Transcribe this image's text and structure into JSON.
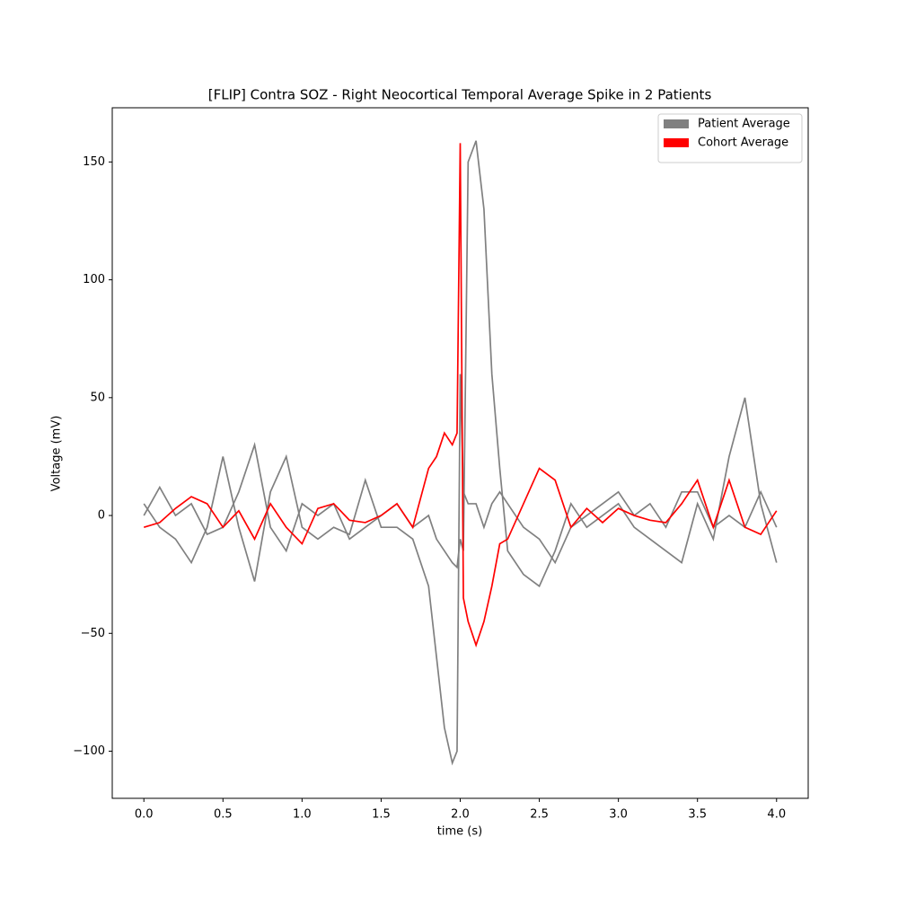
{
  "chart_data": {
    "type": "line",
    "title": "[FLIP] Contra SOZ - Right Neocortical Temporal Average Spike in 2 Patients",
    "xlabel": "time (s)",
    "ylabel": "Voltage (mV)",
    "x": [
      0,
      0.1,
      0.2,
      0.3,
      0.4,
      0.5,
      0.6,
      0.7,
      0.8,
      0.9,
      1.0,
      1.1,
      1.2,
      1.3,
      1.4,
      1.5,
      1.6,
      1.7,
      1.8,
      1.85,
      1.9,
      1.95,
      1.98,
      2.0,
      2.02,
      2.05,
      2.1,
      2.15,
      2.2,
      2.25,
      2.3,
      2.4,
      2.5,
      2.6,
      2.7,
      2.8,
      2.9,
      3.0,
      3.1,
      3.2,
      3.3,
      3.4,
      3.5,
      3.6,
      3.7,
      3.8,
      3.9,
      4.0
    ],
    "series": [
      {
        "name": "Patient Average",
        "color": "#808080",
        "values": [
          5,
          -5,
          -10,
          -20,
          -5,
          25,
          -5,
          -28,
          10,
          25,
          -5,
          -10,
          -5,
          -8,
          15,
          -5,
          -5,
          -10,
          -30,
          -60,
          -90,
          -105,
          -100,
          60,
          10,
          5,
          5,
          -5,
          5,
          10,
          5,
          -5,
          -10,
          -20,
          -5,
          0,
          5,
          10,
          0,
          5,
          -5,
          10,
          10,
          -5,
          0,
          -5,
          10,
          -5
        ]
      },
      {
        "color": "#808080",
        "values": [
          0,
          12,
          0,
          5,
          -8,
          -5,
          10,
          30,
          -5,
          -15,
          5,
          0,
          5,
          -10,
          -5,
          0,
          5,
          -5,
          0,
          -10,
          -15,
          -20,
          -22,
          -10,
          -15,
          150,
          159,
          130,
          60,
          20,
          -15,
          -25,
          -30,
          -15,
          5,
          -5,
          0,
          5,
          -5,
          -10,
          -15,
          -20,
          5,
          -10,
          25,
          50,
          5,
          -20
        ]
      },
      {
        "name": "Cohort Average",
        "color": "#ff0000",
        "values": [
          -5,
          -3,
          3,
          8,
          5,
          -5,
          2,
          -10,
          5,
          -5,
          -12,
          3,
          5,
          -2,
          -3,
          0,
          5,
          -5,
          20,
          25,
          35,
          30,
          35,
          158,
          -35,
          -45,
          -55,
          -45,
          -30,
          -12,
          -10,
          5,
          20,
          15,
          -5,
          3,
          -3,
          3,
          0,
          -2,
          -3,
          5,
          15,
          -5,
          15,
          -5,
          -8,
          2
        ]
      }
    ],
    "xlim": [
      -0.2,
      4.2
    ],
    "ylim": [
      -120,
      173
    ],
    "xticks": [
      {
        "value": 0,
        "label": "0.0"
      },
      {
        "value": 0.5,
        "label": "0.5"
      },
      {
        "value": 1,
        "label": "1.0"
      },
      {
        "value": 1.5,
        "label": "1.5"
      },
      {
        "value": 2,
        "label": "2.0"
      },
      {
        "value": 2.5,
        "label": "2.5"
      },
      {
        "value": 3,
        "label": "3.0"
      },
      {
        "value": 3.5,
        "label": "3.5"
      },
      {
        "value": 4,
        "label": "4.0"
      }
    ],
    "yticks": [
      {
        "value": -100,
        "label": "−100"
      },
      {
        "value": -50,
        "label": "−50"
      },
      0,
      50,
      100,
      150
    ],
    "legend": "upper right",
    "grid": false
  }
}
